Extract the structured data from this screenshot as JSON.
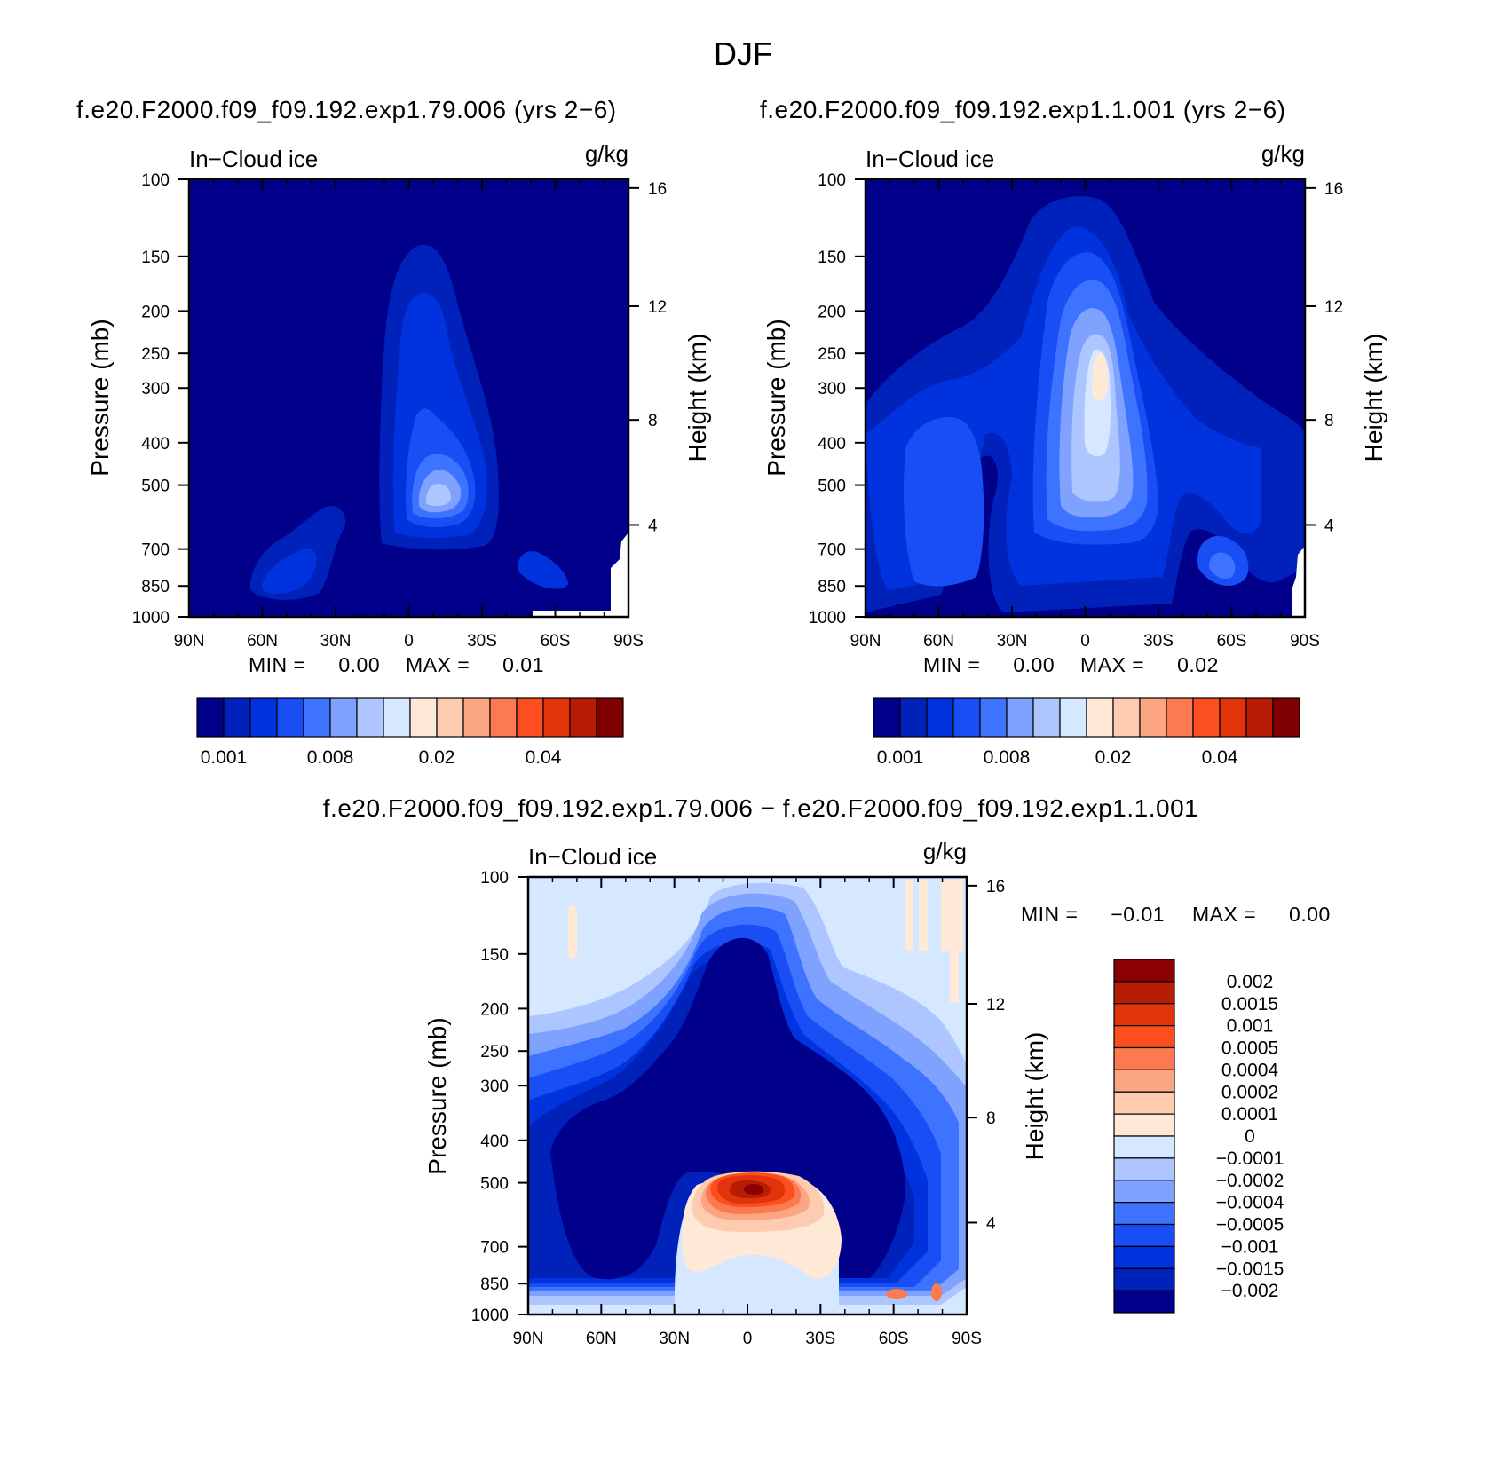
{
  "figure": {
    "season": "DJF"
  },
  "chart_data": [
    {
      "type": "heatmap",
      "panel": "top-left",
      "case_title": "f.e20.F2000.f09_f09.192.exp1.79.006 (yrs 2−6)",
      "variable": "In−Cloud ice",
      "units": "g/kg",
      "ylabel": "Pressure (mb)",
      "y2label": "Height (km)",
      "x_ticks": [
        "90N",
        "60N",
        "30N",
        "0",
        "30S",
        "60S",
        "90S"
      ],
      "y_ticks": [
        "100",
        "150",
        "200",
        "250",
        "300",
        "400",
        "500",
        "700",
        "850",
        "1000"
      ],
      "y_ticks_values": [
        100,
        150,
        200,
        250,
        300,
        400,
        500,
        700,
        850,
        1000
      ],
      "y2_ticks": [
        "16",
        "12",
        "8",
        "4"
      ],
      "stats": {
        "min_label": "MIN =",
        "min": "0.00",
        "max_label": "MAX =",
        "max": "0.01"
      },
      "colorbar": {
        "colors": [
          "#00008b",
          "#0022bb",
          "#0033dd",
          "#1a4ef5",
          "#3e73ff",
          "#7fa2ff",
          "#adc6ff",
          "#d6e8ff",
          "#fee8d6",
          "#fdcbb0",
          "#fca583",
          "#fb7a4f",
          "#fc4e1e",
          "#e2340a",
          "#b71c05",
          "#7f0000"
        ],
        "tick_labels": [
          "0.001",
          "0.008",
          "0.02",
          "0.04"
        ]
      }
    },
    {
      "type": "heatmap",
      "panel": "top-right",
      "case_title": "f.e20.F2000.f09_f09.192.exp1.1.001 (yrs 2−6)",
      "variable": "In−Cloud ice",
      "units": "g/kg",
      "ylabel": "Pressure (mb)",
      "y2label": "Height (km)",
      "x_ticks": [
        "90N",
        "60N",
        "30N",
        "0",
        "30S",
        "60S",
        "90S"
      ],
      "y_ticks": [
        "100",
        "150",
        "200",
        "250",
        "300",
        "400",
        "500",
        "700",
        "850",
        "1000"
      ],
      "y_ticks_values": [
        100,
        150,
        200,
        250,
        300,
        400,
        500,
        700,
        850,
        1000
      ],
      "y2_ticks": [
        "16",
        "12",
        "8",
        "4"
      ],
      "stats": {
        "min_label": "MIN =",
        "min": "0.00",
        "max_label": "MAX =",
        "max": "0.02"
      },
      "colorbar": {
        "colors": [
          "#00008b",
          "#0022bb",
          "#0033dd",
          "#1a4ef5",
          "#3e73ff",
          "#7fa2ff",
          "#adc6ff",
          "#d6e8ff",
          "#fee8d6",
          "#fdcbb0",
          "#fca583",
          "#fb7a4f",
          "#fc4e1e",
          "#e2340a",
          "#b71c05",
          "#7f0000"
        ],
        "tick_labels": [
          "0.001",
          "0.008",
          "0.02",
          "0.04"
        ]
      }
    },
    {
      "type": "heatmap",
      "panel": "bottom-difference",
      "case_title": "f.e20.F2000.f09_f09.192.exp1.79.006 − f.e20.F2000.f09_f09.192.exp1.1.001",
      "variable": "In−Cloud ice",
      "units": "g/kg",
      "ylabel": "Pressure (mb)",
      "y2label": "Height (km)",
      "x_ticks": [
        "90N",
        "60N",
        "30N",
        "0",
        "30S",
        "60S",
        "90S"
      ],
      "y_ticks": [
        "100",
        "150",
        "200",
        "250",
        "300",
        "400",
        "500",
        "700",
        "850",
        "1000"
      ],
      "y_ticks_values": [
        100,
        150,
        200,
        250,
        300,
        400,
        500,
        700,
        850,
        1000
      ],
      "y2_ticks": [
        "16",
        "12",
        "8",
        "4"
      ],
      "stats": {
        "min_label": "MIN =",
        "min": "−0.01",
        "max_label": "MAX =",
        "max": "0.00"
      },
      "colorbar": {
        "colors": [
          "#8b0000",
          "#b71c05",
          "#e2340a",
          "#fc4e1e",
          "#fb7a4f",
          "#fca583",
          "#fdcbb0",
          "#fee8d6",
          "#d6e8ff",
          "#adc6ff",
          "#7fa2ff",
          "#3e73ff",
          "#1a4ef5",
          "#0033dd",
          "#0022bb",
          "#00008b"
        ],
        "tick_labels": [
          "0.002",
          "0.0015",
          "0.001",
          "0.0005",
          "0.0004",
          "0.0002",
          "0.0001",
          "0",
          "−0.0001",
          "−0.0002",
          "−0.0004",
          "−0.0005",
          "−0.001",
          "−0.0015",
          "−0.002"
        ]
      }
    }
  ]
}
